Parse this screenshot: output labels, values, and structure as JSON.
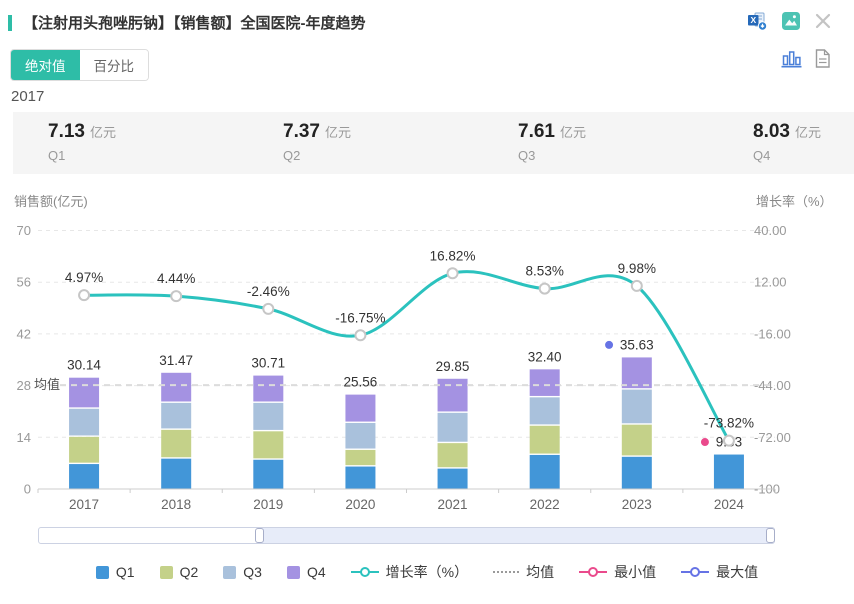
{
  "header": {
    "title": "【注射用头孢唑肟钠】【销售额】全国医院-年度趋势"
  },
  "toolbar": {
    "icons": [
      "excel-export-icon",
      "image-export-icon",
      "close-icon",
      "bar-chart-view-icon",
      "data-view-icon"
    ]
  },
  "toggle": {
    "absolute": "绝对值",
    "percent": "百分比"
  },
  "stats": {
    "year": "2017",
    "quarters": [
      {
        "value": "7.13",
        "unit": "亿元",
        "label": "Q1"
      },
      {
        "value": "7.37",
        "unit": "亿元",
        "label": "Q2"
      },
      {
        "value": "7.61",
        "unit": "亿元",
        "label": "Q3"
      },
      {
        "value": "8.03",
        "unit": "亿元",
        "label": "Q4"
      }
    ]
  },
  "chart_data": {
    "type": "bar+line",
    "categories": [
      "2017",
      "2018",
      "2019",
      "2020",
      "2021",
      "2022",
      "2023",
      "2024"
    ],
    "stack_series": [
      {
        "name": "Q1",
        "values": [
          7.13,
          8.6,
          8.3,
          6.46,
          5.9,
          9.6,
          9.1,
          9.33
        ]
      },
      {
        "name": "Q2",
        "values": [
          7.37,
          7.8,
          7.7,
          4.5,
          6.9,
          7.9,
          8.7,
          0
        ]
      },
      {
        "name": "Q3",
        "values": [
          7.61,
          7.3,
          7.7,
          7.3,
          8.2,
          7.7,
          9.5,
          0
        ]
      },
      {
        "name": "Q4",
        "values": [
          8.03,
          7.77,
          7.01,
          7.3,
          8.85,
          7.2,
          8.33,
          0
        ]
      }
    ],
    "totals": [
      "30.14",
      "31.47",
      "30.71",
      "25.56",
      "29.85",
      "32.40",
      "35.63",
      "9.33"
    ],
    "growth_line": {
      "name": "增长率（%）",
      "values": [
        "4.97%",
        "4.44%",
        "-2.46%",
        "-16.75%",
        "16.82%",
        "8.53%",
        "9.98%",
        "-73.82%"
      ]
    },
    "left_axis": {
      "title": "销售额(亿元)",
      "ticks": [
        70,
        56,
        42,
        28,
        14,
        0
      ],
      "min": 0,
      "max": 70
    },
    "right_axis": {
      "title": "增长率（%）",
      "ticks": [
        "40.00",
        "12.00",
        "-16.00",
        "-44.00",
        "-72.00",
        "-100"
      ],
      "min": -100,
      "max": 40
    },
    "mean": {
      "label": "均值",
      "value": 28.14
    },
    "min_marker": {
      "index": 7,
      "label": "最小值"
    },
    "max_marker": {
      "index": 6,
      "label": "最大值"
    },
    "grid": "dashed horizontal",
    "legend_position": "bottom"
  },
  "legend": [
    {
      "label": "Q1"
    },
    {
      "label": "Q2"
    },
    {
      "label": "Q3"
    },
    {
      "label": "Q4"
    },
    {
      "label": "增长率（%）"
    },
    {
      "label": "均值"
    },
    {
      "label": "最小值"
    },
    {
      "label": "最大值"
    }
  ],
  "colors": {
    "accent": "#2EBDA7",
    "q1": "#4296D8",
    "q2": "#C4D189",
    "q3": "#A9C1DC",
    "q4": "#A492E2",
    "line": "#2BC2BE",
    "min": "#EA4A8C",
    "max": "#6673E5",
    "mean_line": "#DCDCDC"
  }
}
